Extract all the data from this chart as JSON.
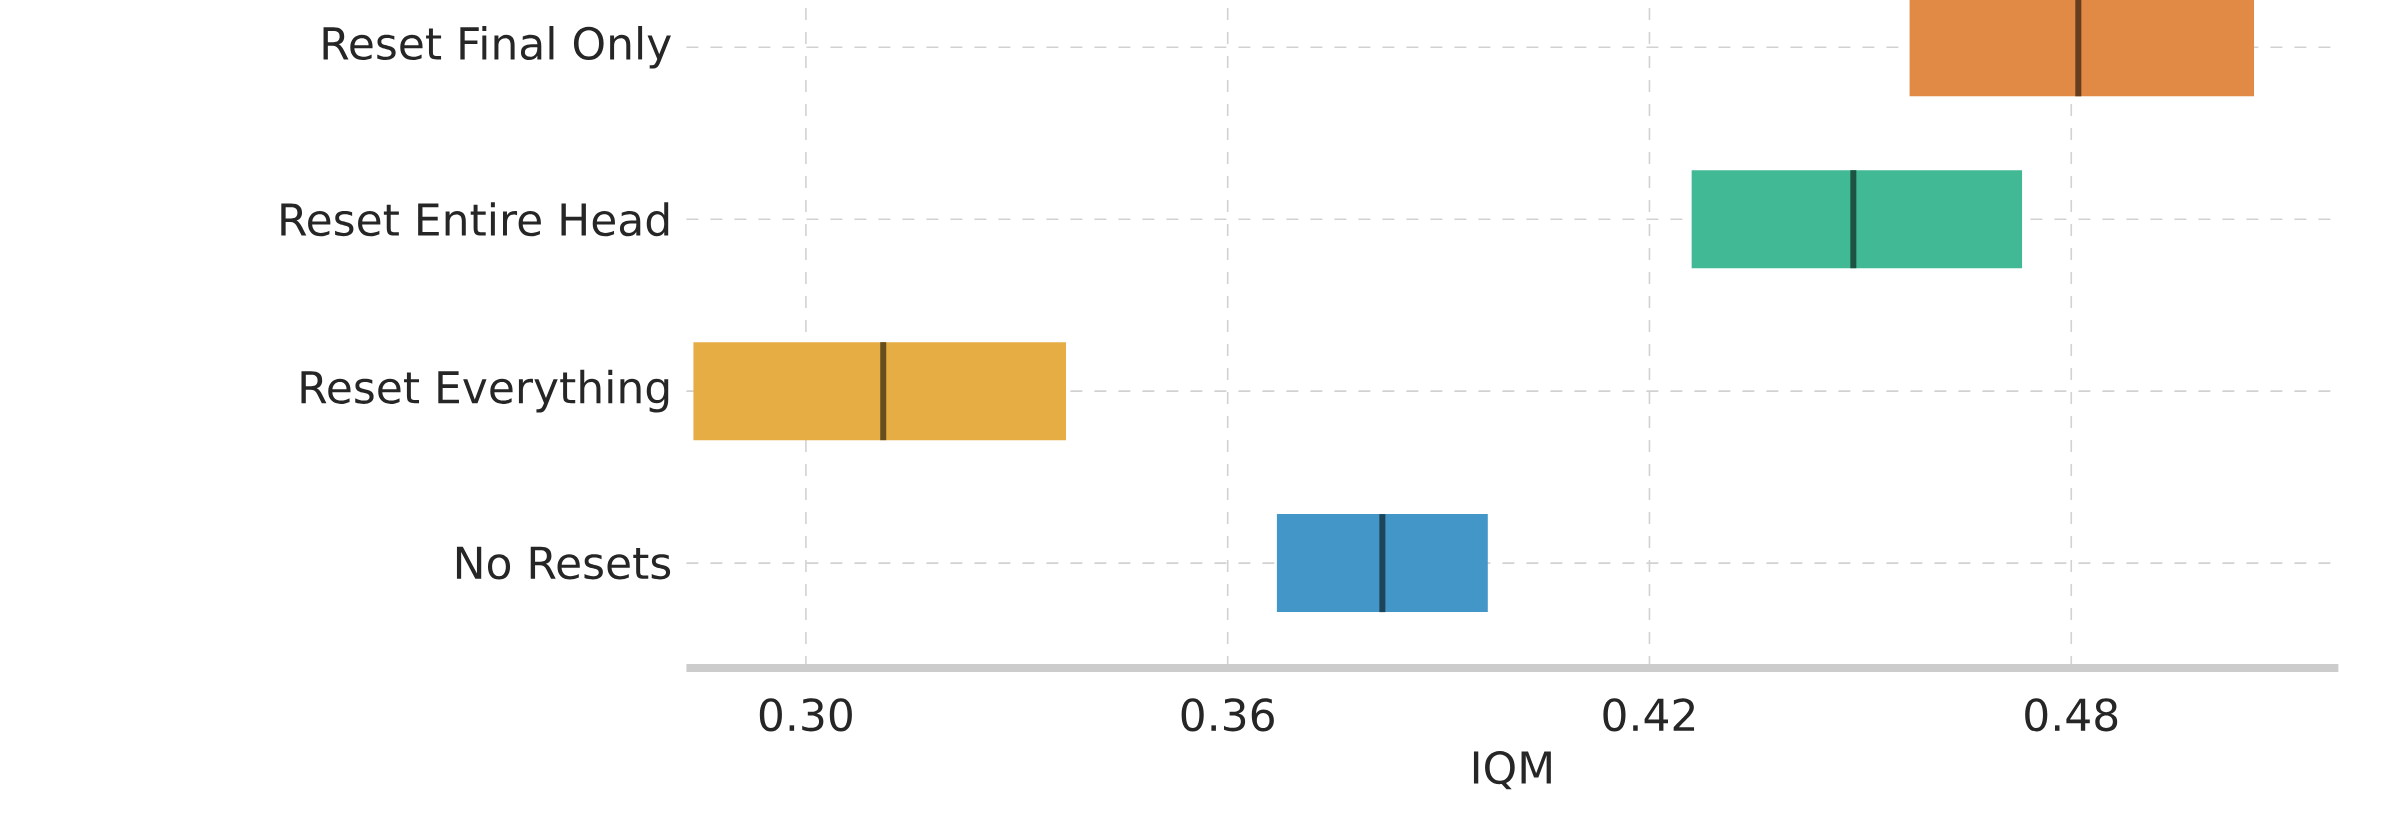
{
  "chart_data": {
    "type": "box",
    "orientation": "horizontal",
    "xlabel": "IQM",
    "categories": [
      "Reset Final Only",
      "Reset Entire Head",
      "Reset Everything",
      "No Resets"
    ],
    "boxes": [
      {
        "low": 0.457,
        "q1": 0.457,
        "median": 0.481,
        "q3": 0.506,
        "high": 0.506
      },
      {
        "low": 0.426,
        "q1": 0.426,
        "median": 0.449,
        "q3": 0.473,
        "high": 0.473
      },
      {
        "low": 0.284,
        "q1": 0.284,
        "median": 0.311,
        "q3": 0.337,
        "high": 0.337
      },
      {
        "low": 0.367,
        "q1": 0.367,
        "median": 0.382,
        "q3": 0.397,
        "high": 0.397
      }
    ],
    "colors": [
      "#e08a45",
      "#42b995",
      "#e6ad45",
      "#4297c8"
    ],
    "xlim": [
      0.283,
      0.518
    ],
    "xticks": [
      {
        "value": 0.3,
        "label": "0.30"
      },
      {
        "value": 0.36,
        "label": "0.36"
      },
      {
        "value": 0.42,
        "label": "0.42"
      },
      {
        "value": 0.48,
        "label": "0.48"
      }
    ],
    "grid": true
  }
}
